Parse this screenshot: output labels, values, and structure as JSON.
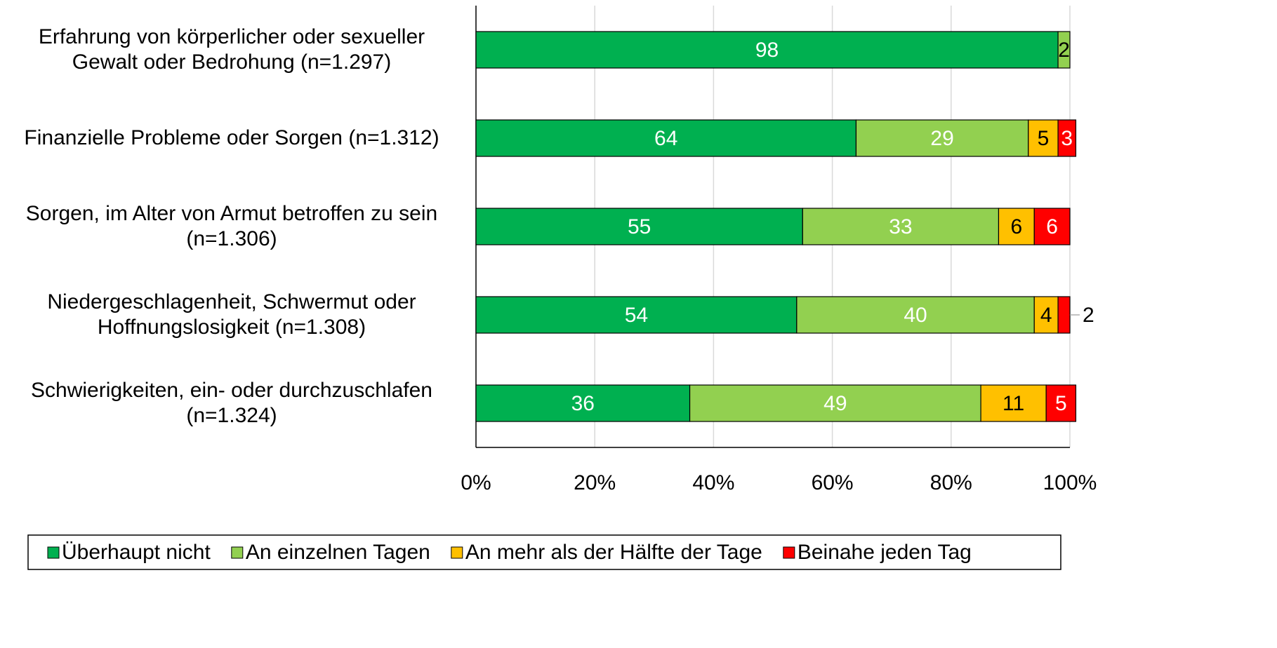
{
  "chart_data": {
    "type": "stacked-bar-horizontal",
    "categories": [
      "Erfahrung von körperlicher oder sexueller Gewalt oder Bedrohung (n=1.297)",
      "Finanzielle Probleme oder Sorgen (n=1.312)",
      "Sorgen, im Alter von Armut betroffen zu sein (n=1.306)",
      "Niedergeschlagenheit, Schwermut oder Hoffnungslosigkeit (n=1.308)",
      "Schwierigkeiten, ein- oder durchzuschlafen (n=1.324)"
    ],
    "series": [
      {
        "name": "Überhaupt nicht",
        "color": "#00b050",
        "values": [
          98,
          64,
          55,
          54,
          36
        ]
      },
      {
        "name": "An einzelnen Tagen",
        "color": "#92d050",
        "values": [
          2,
          29,
          33,
          40,
          49
        ]
      },
      {
        "name": "An mehr als der Hälfte der Tage",
        "color": "#ffc000",
        "values": [
          0,
          5,
          6,
          4,
          11
        ]
      },
      {
        "name": "Beinahe jeden Tag",
        "color": "#ff0000",
        "values": [
          0,
          3,
          6,
          2,
          5
        ]
      }
    ],
    "xlim": [
      0,
      100
    ],
    "xticks": [
      {
        "value": 0,
        "label": "0%"
      },
      {
        "value": 20,
        "label": "20%"
      },
      {
        "value": 40,
        "label": "40%"
      },
      {
        "value": 60,
        "label": "60%"
      },
      {
        "value": 80,
        "label": "80%"
      },
      {
        "value": 100,
        "label": "100%"
      }
    ],
    "grid": true,
    "legend": "bottom"
  }
}
